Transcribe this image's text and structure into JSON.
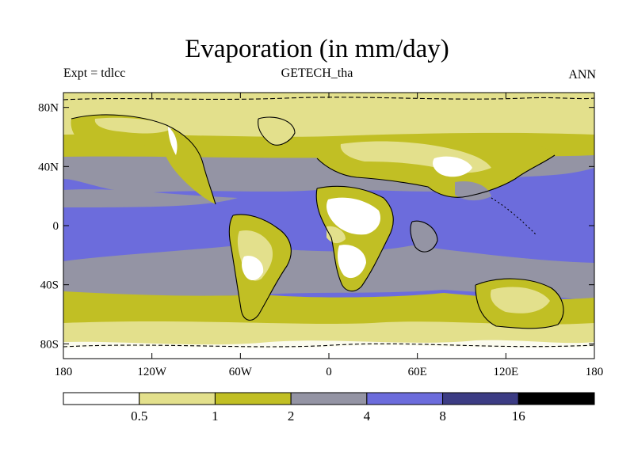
{
  "title": "Evaporation (in mm/day)",
  "left_label": "Expt = tdlcc",
  "center_label": "GETECH_tha",
  "right_label": "ANN",
  "map": {
    "lon_ticks": [
      "180",
      "120W",
      "60W",
      "0",
      "60E",
      "120E",
      "180"
    ],
    "lat_ticks": [
      "80N",
      "40N",
      "0",
      "40S",
      "80S"
    ]
  },
  "colorbar": {
    "colors": [
      "#ffffff",
      "#e3e08c",
      "#c1bf24",
      "#9494a4",
      "#6c6cdc",
      "#3c3c84",
      "#000000"
    ],
    "labels": [
      "0.5",
      "1",
      "2",
      "4",
      "8",
      "16"
    ]
  }
}
